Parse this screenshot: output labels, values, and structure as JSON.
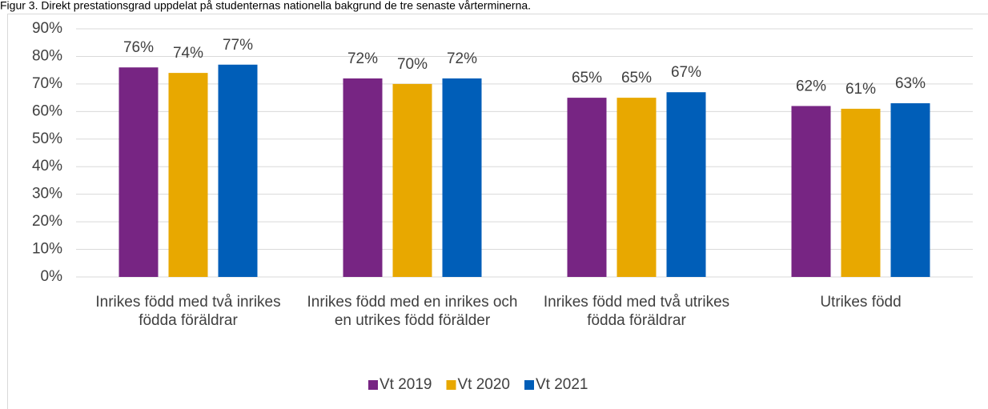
{
  "chart_data": {
    "type": "bar",
    "title": "Figur 3. Direkt prestationsgrad uppdelat på studenternas nationella bakgrund de tre senaste vårterminerna.",
    "categories": [
      "Inrikes född med två inrikes födda föräldrar",
      "Inrikes född med en inrikes och en utrikes född förälder",
      "Inrikes född med två utrikes födda föräldrar",
      "Utrikes född"
    ],
    "series": [
      {
        "name": "Vt 2019",
        "color": "#772583",
        "values": [
          76,
          72,
          65,
          62
        ],
        "value_labels": [
          "76%",
          "72%",
          "65%",
          "62%"
        ]
      },
      {
        "name": "Vt 2020",
        "color": "#e8a800",
        "values": [
          74,
          70,
          65,
          61
        ],
        "value_labels": [
          "74%",
          "70%",
          "65%",
          "61%"
        ]
      },
      {
        "name": "Vt 2021",
        "color": "#005eb8",
        "values": [
          77,
          72,
          67,
          63
        ],
        "value_labels": [
          "77%",
          "72%",
          "67%",
          "63%"
        ]
      }
    ],
    "ylim": [
      0,
      90
    ],
    "yticks": [
      {
        "value": 0,
        "label": "0%"
      },
      {
        "value": 10,
        "label": "10%"
      },
      {
        "value": 20,
        "label": "20%"
      },
      {
        "value": 30,
        "label": "30%"
      },
      {
        "value": 40,
        "label": "40%"
      },
      {
        "value": 50,
        "label": "50%"
      },
      {
        "value": 60,
        "label": "60%"
      },
      {
        "value": 70,
        "label": "70%"
      },
      {
        "value": 80,
        "label": "80%"
      },
      {
        "value": 90,
        "label": "90%"
      }
    ],
    "grid": true,
    "legend": "bottom"
  }
}
